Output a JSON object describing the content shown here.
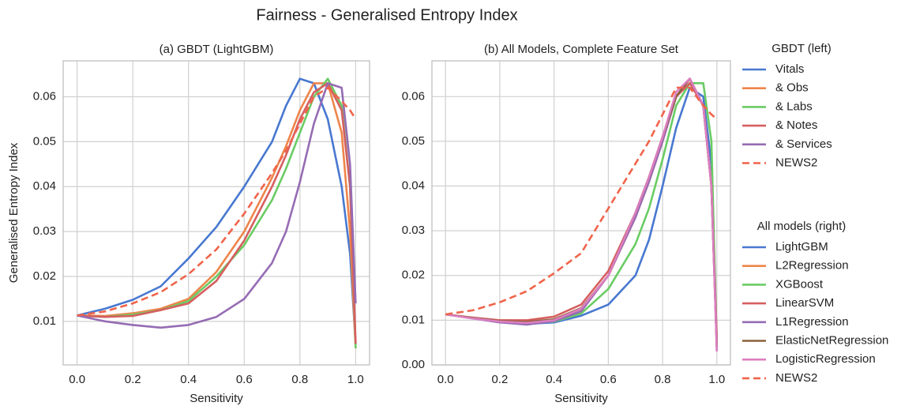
{
  "title": "Fairness - Generalised Entropy Index",
  "chart_data": [
    {
      "type": "line",
      "title": "(a) GBDT (LightGBM)",
      "xlabel": "Sensitivity",
      "ylabel": "Generalised Entropy Index",
      "legend_title": "GBDT (left)",
      "grid": true,
      "xlim": [
        -0.05,
        1.05
      ],
      "ylim": [
        0.0003,
        0.068
      ],
      "xticks": [
        {
          "value": 0,
          "label": "0.0"
        },
        0.2,
        0.4,
        0.6,
        0.8,
        {
          "value": 1,
          "label": "1.0"
        }
      ],
      "yticks": [
        0.01,
        0.02,
        0.03,
        0.04,
        0.05,
        0.06
      ],
      "x": [
        0,
        0.1,
        0.2,
        0.3,
        0.4,
        0.5,
        0.6,
        0.7,
        0.75,
        0.8,
        0.85,
        0.9,
        0.95,
        0.98,
        1.0
      ],
      "series": [
        {
          "name": "Vitals",
          "color": "#4878d0",
          "values": [
            0.0113,
            0.0128,
            0.0148,
            0.0178,
            0.024,
            0.031,
            0.04,
            0.05,
            0.058,
            0.064,
            0.063,
            0.055,
            0.04,
            0.025,
            0.005
          ]
        },
        {
          "name": "& Obs",
          "color": "#ee854a",
          "values": [
            0.0113,
            0.0112,
            0.0118,
            0.0128,
            0.015,
            0.021,
            0.03,
            0.042,
            0.049,
            0.057,
            0.063,
            0.063,
            0.052,
            0.03,
            0.004
          ]
        },
        {
          "name": "& Labs",
          "color": "#6acc64",
          "values": [
            0.0113,
            0.011,
            0.0115,
            0.0125,
            0.0145,
            0.02,
            0.027,
            0.037,
            0.044,
            0.052,
            0.06,
            0.064,
            0.058,
            0.04,
            0.004
          ]
        },
        {
          "name": "& Notes",
          "color": "#d65f5f",
          "values": [
            0.0113,
            0.011,
            0.0112,
            0.0125,
            0.014,
            0.019,
            0.028,
            0.04,
            0.047,
            0.055,
            0.061,
            0.063,
            0.057,
            0.04,
            0.005
          ]
        },
        {
          "name": "& Services",
          "color": "#956cb4",
          "values": [
            0.0113,
            0.01,
            0.0092,
            0.0086,
            0.0092,
            0.011,
            0.015,
            0.023,
            0.03,
            0.041,
            0.054,
            0.063,
            0.062,
            0.045,
            0.014
          ]
        },
        {
          "name": "NEWS2",
          "color": "#f0644a",
          "style": "dashed",
          "values": [
            0.0113,
            0.0122,
            0.014,
            0.0165,
            0.0205,
            0.026,
            0.034,
            0.043,
            0.048,
            0.054,
            0.06,
            0.062,
            0.059,
            0.057,
            0.055
          ]
        }
      ]
    },
    {
      "type": "line",
      "title": "(b) All Models, Complete Feature Set",
      "xlabel": "Sensitivity",
      "legend_title": "All models (right)",
      "grid": true,
      "xlim": [
        -0.05,
        1.05
      ],
      "ylim": [
        0,
        0.068
      ],
      "xticks": [
        {
          "value": 0,
          "label": "0.0"
        },
        0.2,
        0.4,
        0.6,
        0.8,
        {
          "value": 1,
          "label": "1.0"
        }
      ],
      "yticks": [
        {
          "value": 0,
          "label": "0.00"
        },
        0.01,
        0.02,
        0.03,
        0.04,
        0.05,
        0.06
      ],
      "x": [
        0,
        0.1,
        0.2,
        0.3,
        0.4,
        0.5,
        0.6,
        0.7,
        0.75,
        0.8,
        0.85,
        0.9,
        0.95,
        0.98,
        1.0
      ],
      "series": [
        {
          "name": "LightGBM",
          "color": "#4878d0",
          "values": [
            0.0113,
            0.0105,
            0.0098,
            0.0092,
            0.0095,
            0.011,
            0.0135,
            0.02,
            0.028,
            0.04,
            0.053,
            0.062,
            0.06,
            0.045,
            0.003
          ]
        },
        {
          "name": "L2Regression",
          "color": "#ee854a",
          "values": [
            0.0113,
            0.0105,
            0.0098,
            0.0095,
            0.01,
            0.0125,
            0.02,
            0.033,
            0.041,
            0.05,
            0.06,
            0.064,
            0.058,
            0.04,
            0.004
          ]
        },
        {
          "name": "XGBoost",
          "color": "#6acc64",
          "values": [
            0.0113,
            0.0105,
            0.0097,
            0.0093,
            0.0097,
            0.0115,
            0.017,
            0.027,
            0.035,
            0.046,
            0.058,
            0.063,
            0.063,
            0.05,
            0.004
          ]
        },
        {
          "name": "LinearSVM",
          "color": "#d65f5f",
          "values": [
            0.0113,
            0.0106,
            0.01,
            0.01,
            0.0108,
            0.0135,
            0.021,
            0.034,
            0.042,
            0.051,
            0.06,
            0.063,
            0.058,
            0.04,
            0.006
          ]
        },
        {
          "name": "L1Regression",
          "color": "#956cb4",
          "values": [
            0.0113,
            0.0104,
            0.0095,
            0.009,
            0.0098,
            0.012,
            0.02,
            0.033,
            0.041,
            0.05,
            0.06,
            0.064,
            0.058,
            0.04,
            0.004
          ]
        },
        {
          "name": "ElasticNetRegression",
          "color": "#8c613c",
          "values": [
            0.0113,
            0.0105,
            0.0098,
            0.0096,
            0.0102,
            0.0127,
            0.02,
            0.034,
            0.042,
            0.051,
            0.06,
            0.064,
            0.058,
            0.04,
            0.004
          ]
        },
        {
          "name": "LogisticRegression",
          "color": "#dc7ec0",
          "values": [
            0.0113,
            0.0104,
            0.0097,
            0.0094,
            0.01,
            0.0126,
            0.02,
            0.034,
            0.042,
            0.051,
            0.061,
            0.064,
            0.058,
            0.04,
            0.003
          ]
        },
        {
          "name": "NEWS2",
          "color": "#f0644a",
          "style": "dashed",
          "values": [
            0.0113,
            0.0122,
            0.014,
            0.0165,
            0.0205,
            0.025,
            0.035,
            0.045,
            0.05,
            0.056,
            0.062,
            0.062,
            0.058,
            0.056,
            0.055
          ]
        }
      ]
    }
  ]
}
